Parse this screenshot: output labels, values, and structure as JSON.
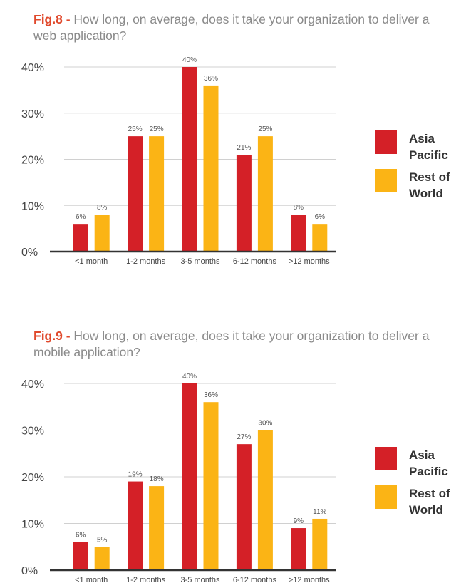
{
  "figures": [
    {
      "fig_label": "Fig.8 -",
      "question": " How long, on average, does it take your organization to deliver a web application?"
    },
    {
      "fig_label": "Fig.9 -",
      "question": " How long, on average, does it take your organization to deliver a mobile application?"
    }
  ],
  "legend": [
    {
      "label": "Asia Pacific",
      "color": "#d42027"
    },
    {
      "label": "Rest of World",
      "color": "#fbb415"
    }
  ],
  "chart_data": [
    {
      "type": "bar",
      "title": "How long, on average, does it take your organization to deliver a web application?",
      "categories": [
        "<1 month",
        "1-2 months",
        "3-5 months",
        "6-12  months",
        ">12 months"
      ],
      "series": [
        {
          "name": "Asia Pacific",
          "values": [
            6,
            25,
            40,
            21,
            8
          ],
          "labels": [
            "6%",
            "25%",
            "40%",
            "21%",
            "8%"
          ]
        },
        {
          "name": "Rest of World",
          "values": [
            8,
            25,
            36,
            25,
            6
          ],
          "labels": [
            "8%",
            "25%",
            "36%",
            "25%",
            "6%"
          ]
        }
      ],
      "yticks": [
        "0%",
        "10%",
        "20%",
        "30%",
        "40%"
      ],
      "ylim": [
        0,
        40
      ],
      "grid": true,
      "legend_position": "right"
    },
    {
      "type": "bar",
      "title": "How long, on average, does it take your organization to deliver a mobile application?",
      "categories": [
        "<1 month",
        "1-2 months",
        "3-5 months",
        "6-12  months",
        ">12 months"
      ],
      "series": [
        {
          "name": "Asia Pacific",
          "values": [
            6,
            19,
            40,
            27,
            9
          ],
          "labels": [
            "6%",
            "19%",
            "40%",
            "27%",
            "9%"
          ]
        },
        {
          "name": "Rest of World",
          "values": [
            5,
            18,
            36,
            30,
            11
          ],
          "labels": [
            "5%",
            "18%",
            "36%",
            "30%",
            "11%"
          ]
        }
      ],
      "yticks": [
        "0%",
        "10%",
        "20%",
        "30%",
        "40%"
      ],
      "ylim": [
        0,
        40
      ],
      "grid": true,
      "legend_position": "right"
    }
  ]
}
